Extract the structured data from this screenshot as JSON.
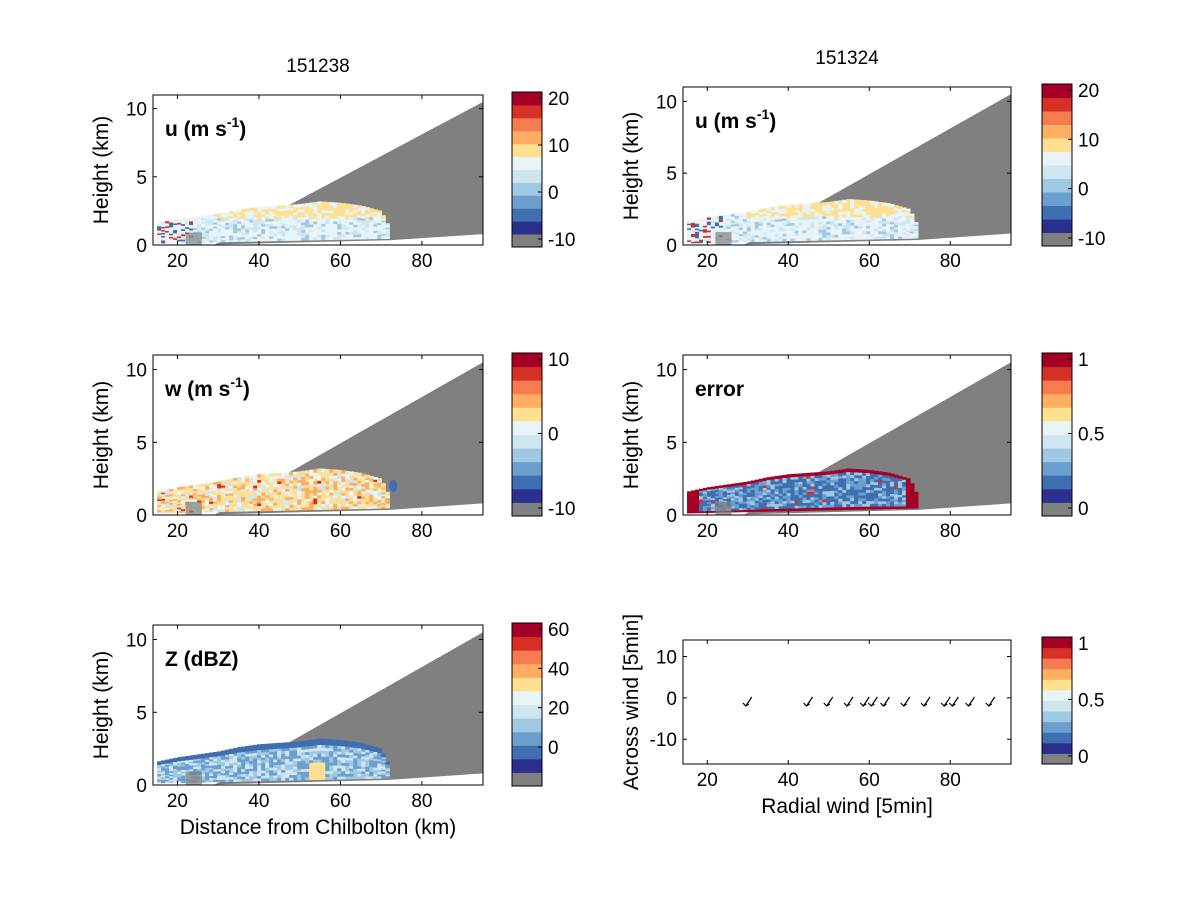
{
  "colors": {
    "masked": "#808080",
    "palette": [
      "#808080",
      "#2b2f8e",
      "#3f6fb0",
      "#6b9fcf",
      "#9fc8e2",
      "#cfe6f1",
      "#e8f4f8",
      "#fee090",
      "#fdae61",
      "#f67b4e",
      "#d73027",
      "#a50026"
    ]
  },
  "chart_data": [
    {
      "id": "left-top",
      "type": "heatmap",
      "title": "151238",
      "label": "u (m s",
      "label_sup": "-1",
      "label_tail": ")",
      "xlabel": "",
      "ylabel": "Height (km)",
      "xlim": [
        14,
        95
      ],
      "ylim": [
        0,
        11
      ],
      "xticks": [
        "20",
        "40",
        "60",
        "80"
      ],
      "yticks": [
        "0",
        "5",
        "10"
      ],
      "colorbar": {
        "ticks": [
          "20",
          "10",
          "0",
          "-10"
        ]
      },
      "palette": "u"
    },
    {
      "id": "right-top",
      "type": "heatmap",
      "title": "151324",
      "label": "u (m s",
      "label_sup": "-1",
      "label_tail": ")",
      "xlabel": "",
      "ylabel": "Height (km)",
      "xlim": [
        14,
        95
      ],
      "ylim": [
        0,
        11
      ],
      "xticks": [
        "20",
        "40",
        "60",
        "80"
      ],
      "yticks": [
        "0",
        "5",
        "10"
      ],
      "colorbar": {
        "ticks": [
          "20",
          "10",
          "0",
          "-10"
        ]
      },
      "palette": "u"
    },
    {
      "id": "left-mid",
      "type": "heatmap",
      "title": "",
      "label": "w (m s",
      "label_sup": "-1",
      "label_tail": ")",
      "xlabel": "",
      "ylabel": "Height (km)",
      "xlim": [
        14,
        95
      ],
      "ylim": [
        0,
        11
      ],
      "xticks": [
        "20",
        "40",
        "60",
        "80"
      ],
      "yticks": [
        "0",
        "5",
        "10"
      ],
      "colorbar": {
        "ticks": [
          "10",
          "0",
          "-10"
        ]
      },
      "palette": "w"
    },
    {
      "id": "right-mid",
      "type": "heatmap",
      "title": "",
      "label": "error",
      "label_sup": "",
      "label_tail": "",
      "xlabel": "",
      "ylabel": "Height (km)",
      "xlim": [
        14,
        95
      ],
      "ylim": [
        0,
        11
      ],
      "xticks": [
        "20",
        "40",
        "60",
        "80"
      ],
      "yticks": [
        "0",
        "5",
        "10"
      ],
      "colorbar": {
        "ticks": [
          "1",
          "0.5",
          "0"
        ]
      },
      "palette": "error"
    },
    {
      "id": "left-bot",
      "type": "heatmap",
      "title": "",
      "label": "Z (dBZ)",
      "label_sup": "",
      "label_tail": "",
      "xlabel": "Distance from Chilbolton (km)",
      "ylabel": "Height (km)",
      "xlim": [
        14,
        95
      ],
      "ylim": [
        0,
        11
      ],
      "xticks": [
        "20",
        "40",
        "60",
        "80"
      ],
      "yticks": [
        "0",
        "5",
        "10"
      ],
      "colorbar": {
        "ticks": [
          "60",
          "40",
          "20",
          "0"
        ]
      },
      "palette": "z"
    },
    {
      "id": "right-bot",
      "type": "scatter",
      "title": "",
      "label": "",
      "label_sup": "",
      "label_tail": "",
      "xlabel": "Radial wind [5min]",
      "ylabel": "Across wind [5min]",
      "xlim": [
        14,
        95
      ],
      "ylim": [
        -16,
        14
      ],
      "xticks": [
        "20",
        "40",
        "60",
        "80"
      ],
      "yticks": [
        "10",
        "0",
        "-10"
      ],
      "colorbar": {
        "ticks": [
          "1",
          "0.5",
          "0"
        ]
      },
      "arrows_x": [
        30,
        45,
        50,
        55,
        59,
        61,
        64,
        69,
        74,
        79,
        81,
        85,
        90
      ],
      "arrows_y": [
        -1,
        -1,
        -1,
        -1,
        -1,
        -1,
        -1,
        -1,
        -1,
        -1,
        -1,
        -1,
        -1
      ]
    }
  ]
}
